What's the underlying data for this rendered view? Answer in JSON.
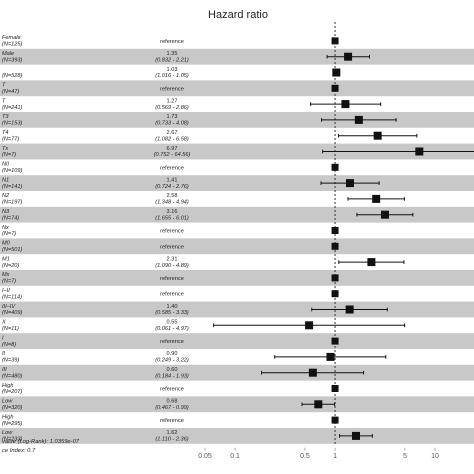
{
  "chart_data": {
    "type": "forest",
    "title": "Hazard ratio",
    "x_scale": "log",
    "xlim": [
      0.05,
      20
    ],
    "reference_line": 1,
    "x_ticks": [
      "0.05",
      "0.1",
      "0.5",
      "1",
      "5",
      "10"
    ],
    "x_tick_values": [
      0.05,
      0.1,
      0.5,
      1,
      5,
      10
    ],
    "rows": [
      {
        "label": "Female",
        "n": "(N=125)",
        "ref": true,
        "hr_text": "reference",
        "hr": 1
      },
      {
        "label": "Male",
        "n": "(N=393)",
        "hr_text": "1.35",
        "ci_text": "(0.832 - 2.21)",
        "hr": 1.35,
        "lo": 0.832,
        "hi": 2.21
      },
      {
        "label": "",
        "n": "(N=528)",
        "hr_text": "1.03",
        "ci_text": "(1.016 - 1.05)",
        "hr": 1.03,
        "lo": 1.016,
        "hi": 1.05
      },
      {
        "label": "T",
        "n": "(N=47)",
        "ref": true,
        "hr_text": "reference",
        "hr": 1
      },
      {
        "label": "T",
        "n": "(N=241)",
        "hr_text": "1.27",
        "ci_text": "(0.569 - 2.86)",
        "hr": 1.27,
        "lo": 0.569,
        "hi": 2.86
      },
      {
        "label": "T3",
        "n": "(N=153)",
        "hr_text": "1.73",
        "ci_text": "(0.733 - 4.08)",
        "hr": 1.73,
        "lo": 0.733,
        "hi": 4.08
      },
      {
        "label": "T4",
        "n": "(N=77)",
        "hr_text": "2.67",
        "ci_text": "(1.082 - 6.58)",
        "hr": 2.67,
        "lo": 1.082,
        "hi": 6.58
      },
      {
        "label": "Tx",
        "n": "(N=7)",
        "hr_text": "6.97",
        "ci_text": "(0.752 - 64.56)",
        "hr": 6.97,
        "lo": 0.752,
        "hi": 64.56
      },
      {
        "label": "N0",
        "n": "(N=109)",
        "ref": true,
        "hr_text": "reference",
        "hr": 1
      },
      {
        "label": "N1",
        "n": "(N=141)",
        "hr_text": "1.41",
        "ci_text": "(0.724 - 2.76)",
        "hr": 1.41,
        "lo": 0.724,
        "hi": 2.76
      },
      {
        "label": "N2",
        "n": "(N=197)",
        "hr_text": "2.58",
        "ci_text": "(1.348 - 4.94)",
        "hr": 2.58,
        "lo": 1.348,
        "hi": 4.94
      },
      {
        "label": "N3",
        "n": "(N=74)",
        "hr_text": "3.16",
        "ci_text": "(1.655 - 6.01)",
        "hr": 3.16,
        "lo": 1.655,
        "hi": 6.01
      },
      {
        "label": "Nx",
        "n": "(N=7)",
        "ref": true,
        "hr_text": "reference",
        "hr": 1
      },
      {
        "label": "M0",
        "n": "(N=501)",
        "ref": true,
        "hr_text": "reference",
        "hr": 1
      },
      {
        "label": "M1",
        "n": "(N=20)",
        "hr_text": "2.31",
        "ci_text": "(1.090 - 4.89)",
        "hr": 2.31,
        "lo": 1.09,
        "hi": 4.89
      },
      {
        "label": "Mx",
        "n": "(N=7)",
        "ref": true,
        "hr_text": "reference",
        "hr": 1
      },
      {
        "label": "I–II",
        "n": "(N=114)",
        "ref": true,
        "hr_text": "reference",
        "hr": 1
      },
      {
        "label": "III–IV",
        "n": "(N=409)",
        "hr_text": "1.40",
        "ci_text": "(0.585 - 3.33)",
        "hr": 1.4,
        "lo": 0.585,
        "hi": 3.33
      },
      {
        "label": "X",
        "n": "(N=11)",
        "hr_text": "0.55",
        "ci_text": "(0.061 - 4.97)",
        "hr": 0.55,
        "lo": 0.061,
        "hi": 4.97
      },
      {
        "label": "I",
        "n": "(N=8)",
        "ref": true,
        "hr_text": "reference",
        "hr": 1
      },
      {
        "label": "II",
        "n": "(N=39)",
        "hr_text": "0.90",
        "ci_text": "(0.249 - 3.22)",
        "hr": 0.9,
        "lo": 0.249,
        "hi": 3.22
      },
      {
        "label": "III",
        "n": "(N=480)",
        "hr_text": "0.60",
        "ci_text": "(0.184 - 1.93)",
        "hr": 0.6,
        "lo": 0.184,
        "hi": 1.93
      },
      {
        "label": "High",
        "n": "(N=207)",
        "ref": true,
        "hr_text": "reference",
        "hr": 1
      },
      {
        "label": "Low",
        "n": "(N=320)",
        "hr_text": "0.68",
        "ci_text": "(0.467 - 0.99)",
        "hr": 0.68,
        "lo": 0.467,
        "hi": 0.99
      },
      {
        "label": "High",
        "n": "(N=295)",
        "ref": true,
        "hr_text": "reference",
        "hr": 1
      },
      {
        "label": "Low",
        "n": "(N=233)",
        "hr_text": "1.62",
        "ci_text": "(1.110 - 2.36)",
        "hr": 1.62,
        "lo": 1.11,
        "hi": 2.36
      }
    ],
    "footer": [
      "value (Log-Rank): 1.0359e-07",
      "ce Index: 0.7"
    ],
    "colors": {
      "band": "#c8c8c8",
      "marker": "#111111",
      "refline": "#333333",
      "text": "#222222"
    }
  }
}
